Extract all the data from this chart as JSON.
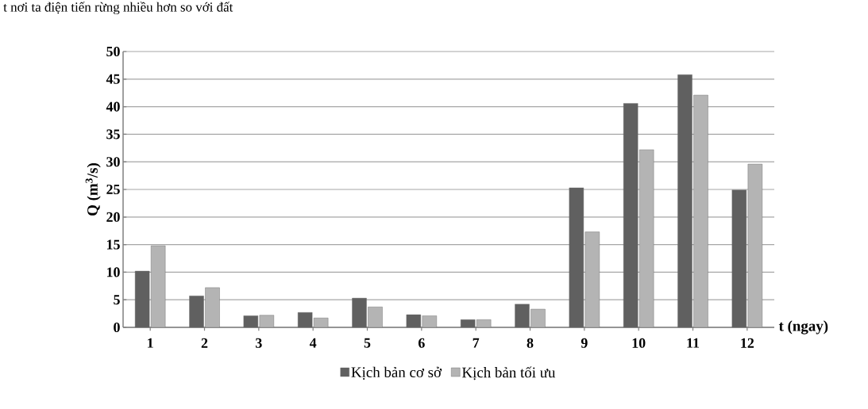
{
  "chart_data": {
    "type": "bar",
    "xlabel": "t (ngay)",
    "ylabel": "Q (m$^{3}$/s)",
    "annotations": [
      "t nơi ta điện tiến rừng nhiều hơn so với đất"
    ],
    "categories": [
      "1",
      "2",
      "3",
      "4",
      "5",
      "6",
      "7",
      "8",
      "9",
      "10",
      "11",
      "12"
    ],
    "series": [
      {
        "name": "Kịch bản cơ sở",
        "color": "#606060",
        "values": [
          10.2,
          5.7,
          2.1,
          2.7,
          5.3,
          2.3,
          1.4,
          4.2,
          25.3,
          40.6,
          45.8,
          24.9
        ]
      },
      {
        "name": "Kịch bản tối ưu",
        "color": "#b4b4b4",
        "values": [
          14.8,
          7.2,
          2.2,
          1.7,
          3.7,
          2.1,
          1.4,
          3.3,
          17.3,
          32.2,
          42.1,
          29.6
        ]
      }
    ],
    "ylim": [
      0,
      50
    ],
    "yticks": [
      0,
      5,
      10,
      15,
      20,
      25,
      30,
      35,
      40,
      45,
      50
    ],
    "grid": "y",
    "legend": "bottom"
  }
}
